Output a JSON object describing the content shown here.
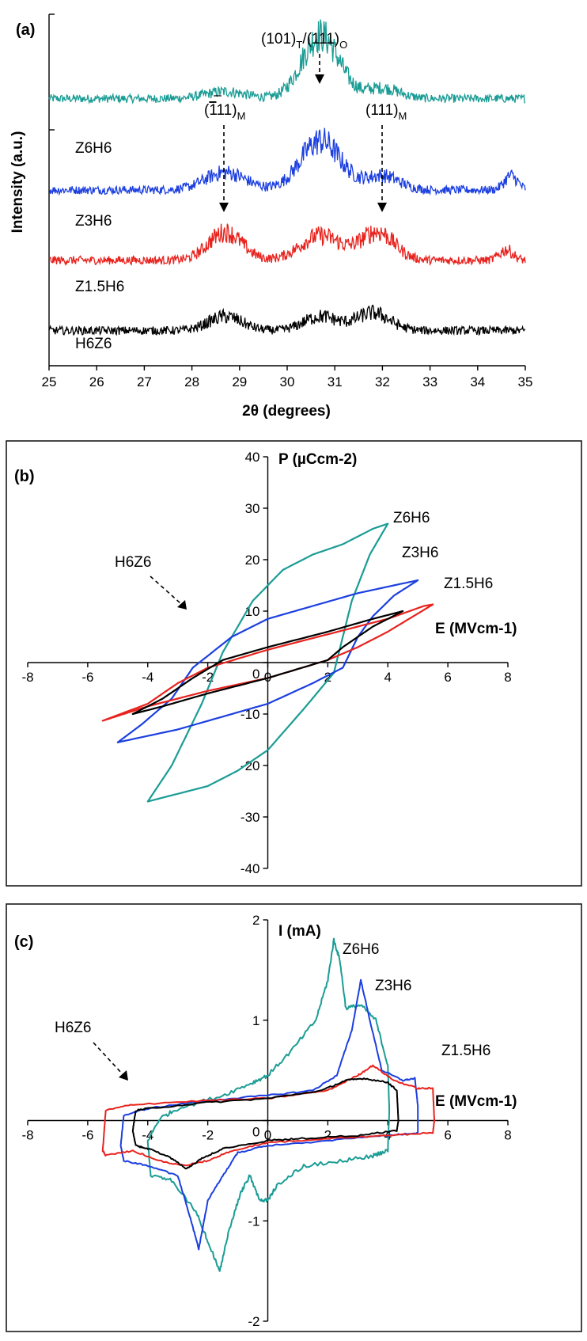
{
  "chart_data": [
    {
      "panel": "(a)",
      "type": "line",
      "xlabel": "2θ (degrees)",
      "ylabel": "Intensity (a.u.)",
      "xlim": [
        25,
        35
      ],
      "xticks": [
        "25",
        "26",
        "27",
        "28",
        "29",
        "30",
        "31",
        "32",
        "33",
        "34",
        "35"
      ],
      "peak_labels": [
        "(1̄11)M",
        "(101)T/(111)O",
        "(111)M"
      ],
      "peak_positions": [
        28.7,
        30.7,
        32.0
      ],
      "series": [
        {
          "name": "Z6H6",
          "color": "#1a9c95",
          "baseline": 0.76,
          "peaks": [
            [
              28.7,
              0.02,
              0.6
            ],
            [
              30.7,
              0.18,
              0.55
            ],
            [
              32.0,
              0.03,
              0.5
            ]
          ]
        },
        {
          "name": "Z3H6",
          "color": "#1c3fe0",
          "baseline": 0.5,
          "peaks": [
            [
              28.7,
              0.05,
              0.6
            ],
            [
              30.7,
              0.14,
              0.6
            ],
            [
              32.0,
              0.04,
              0.5
            ],
            [
              34.7,
              0.04,
              0.2
            ]
          ]
        },
        {
          "name": "Z1.5H6",
          "color": "#e8231e",
          "baseline": 0.3,
          "peaks": [
            [
              28.7,
              0.08,
              0.5
            ],
            [
              30.7,
              0.07,
              0.6
            ],
            [
              31.9,
              0.08,
              0.5
            ],
            [
              34.6,
              0.03,
              0.2
            ]
          ]
        },
        {
          "name": "H6Z6",
          "color": "#000000",
          "baseline": 0.1,
          "peaks": [
            [
              28.7,
              0.04,
              0.5
            ],
            [
              30.7,
              0.04,
              0.5
            ],
            [
              31.8,
              0.05,
              0.5
            ]
          ]
        }
      ]
    },
    {
      "panel": "(b)",
      "type": "line",
      "xlabel": "E (MVcm-1)",
      "ylabel": "P (µCcm-2)",
      "xlim": [
        -8,
        8
      ],
      "ylim": [
        -40,
        40
      ],
      "xticks": [
        "-8",
        "-6",
        "-4",
        "-2",
        "0",
        "2",
        "4",
        "6",
        "8"
      ],
      "yticks": [
        "40",
        "30",
        "20",
        "10",
        "0",
        "-10",
        "-20",
        "-30",
        "-40"
      ],
      "series": [
        {
          "name": "Z6H6",
          "color": "#1a9c95",
          "upper": [
            [
              -4.0,
              -27
            ],
            [
              -3.2,
              -20
            ],
            [
              -2.2,
              -8
            ],
            [
              -1.5,
              2
            ],
            [
              -0.5,
              12
            ],
            [
              0.5,
              18
            ],
            [
              1.5,
              21
            ],
            [
              2.5,
              23
            ],
            [
              3.5,
              26
            ],
            [
              4.0,
              27
            ]
          ],
          "lower": [
            [
              4.0,
              27
            ],
            [
              3.4,
              21
            ],
            [
              2.8,
              12
            ],
            [
              2.2,
              -2
            ],
            [
              1.2,
              -9
            ],
            [
              0,
              -17
            ],
            [
              -1,
              -21
            ],
            [
              -2,
              -24
            ],
            [
              -3,
              -25.5
            ],
            [
              -4.0,
              -27
            ]
          ]
        },
        {
          "name": "Z3H6",
          "color": "#1c3fe0",
          "upper": [
            [
              -5.0,
              -15.5
            ],
            [
              -4.2,
              -12
            ],
            [
              -3.2,
              -7
            ],
            [
              -2.5,
              -1
            ],
            [
              -1.2,
              5
            ],
            [
              0,
              8.5
            ],
            [
              1.5,
              11
            ],
            [
              3,
              13.5
            ],
            [
              4.2,
              15
            ],
            [
              5.0,
              16
            ]
          ],
          "lower": [
            [
              5.0,
              16
            ],
            [
              4.2,
              13
            ],
            [
              3.5,
              9
            ],
            [
              3.0,
              5
            ],
            [
              2.5,
              -1
            ],
            [
              1.5,
              -4
            ],
            [
              0,
              -8
            ],
            [
              -1.5,
              -10.5
            ],
            [
              -3,
              -13
            ],
            [
              -5.0,
              -15.5
            ]
          ]
        },
        {
          "name": "Z1.5H6",
          "color": "#e8231e",
          "upper": [
            [
              -5.5,
              -11.3
            ],
            [
              -4,
              -8
            ],
            [
              -3,
              -4
            ],
            [
              -2,
              -1
            ],
            [
              0,
              2.5
            ],
            [
              2,
              5.5
            ],
            [
              4,
              8.5
            ],
            [
              5.2,
              11
            ],
            [
              5.5,
              11.3
            ]
          ],
          "lower": [
            [
              5.5,
              11.3
            ],
            [
              4,
              6
            ],
            [
              3,
              3
            ],
            [
              2,
              0.5
            ],
            [
              0,
              -3
            ],
            [
              -2,
              -5.5
            ],
            [
              -4,
              -8.5
            ],
            [
              -5.5,
              -11.3
            ]
          ]
        },
        {
          "name": "H6Z6",
          "color": "#000000",
          "upper": [
            [
              -4.5,
              -10
            ],
            [
              -3.5,
              -7
            ],
            [
              -2.5,
              -3
            ],
            [
              -1.5,
              0.5
            ],
            [
              0,
              3
            ],
            [
              2,
              6
            ],
            [
              3.5,
              8.5
            ],
            [
              4.5,
              10
            ]
          ],
          "lower": [
            [
              4.5,
              10
            ],
            [
              3.5,
              7
            ],
            [
              2.5,
              3
            ],
            [
              2,
              0.5
            ],
            [
              0,
              -3
            ],
            [
              -2,
              -6
            ],
            [
              -3.5,
              -8.5
            ],
            [
              -4.5,
              -10
            ]
          ]
        }
      ]
    },
    {
      "panel": "(c)",
      "type": "line",
      "xlabel": "E (MVcm-1)",
      "ylabel": "I (mA)",
      "xlim": [
        -8,
        8
      ],
      "ylim": [
        -2,
        2
      ],
      "xticks": [
        "-8",
        "-6",
        "-4",
        "-2",
        "0",
        "2",
        "4",
        "6",
        "8"
      ],
      "yticks": [
        "2",
        "1",
        "0",
        "-1",
        "-2"
      ],
      "series": [
        {
          "name": "Z6H6",
          "color": "#1a9c95",
          "top": [
            [
              -4.0,
              -0.2
            ],
            [
              -3.6,
              0.02
            ],
            [
              -3,
              0.12
            ],
            [
              -1.5,
              0.25
            ],
            [
              -0.5,
              0.38
            ],
            [
              0,
              0.45
            ],
            [
              0.8,
              0.7
            ],
            [
              1.6,
              1.0
            ],
            [
              2.0,
              1.4
            ],
            [
              2.2,
              1.8
            ],
            [
              2.4,
              1.6
            ],
            [
              2.6,
              1.12
            ],
            [
              3.1,
              1.15
            ],
            [
              3.6,
              1.0
            ],
            [
              4.0,
              0.55
            ],
            [
              4.05,
              0.1
            ]
          ],
          "bottom": [
            [
              4.05,
              0.1
            ],
            [
              4.0,
              -0.3
            ],
            [
              3.5,
              -0.35
            ],
            [
              2.5,
              -0.4
            ],
            [
              1.2,
              -0.45
            ],
            [
              0.3,
              -0.65
            ],
            [
              0,
              -0.8
            ],
            [
              -0.3,
              -0.78
            ],
            [
              -0.6,
              -0.55
            ],
            [
              -0.9,
              -0.72
            ],
            [
              -1.3,
              -1.1
            ],
            [
              -1.6,
              -1.5
            ],
            [
              -2.0,
              -1.2
            ],
            [
              -2.4,
              -0.9
            ],
            [
              -3.2,
              -0.6
            ],
            [
              -3.9,
              -0.55
            ],
            [
              -4.0,
              -0.2
            ]
          ]
        },
        {
          "name": "Z3H6",
          "color": "#1c3fe0",
          "top": [
            [
              -4.9,
              -0.25
            ],
            [
              -4.8,
              0.05
            ],
            [
              -4,
              0.12
            ],
            [
              -2,
              0.2
            ],
            [
              0,
              0.25
            ],
            [
              1.5,
              0.3
            ],
            [
              2.3,
              0.45
            ],
            [
              2.8,
              0.9
            ],
            [
              3.1,
              1.4
            ],
            [
              3.4,
              1.0
            ],
            [
              3.8,
              0.5
            ],
            [
              4.5,
              0.4
            ],
            [
              4.9,
              0.42
            ],
            [
              5.0,
              0.15
            ]
          ],
          "bottom": [
            [
              5.0,
              0.15
            ],
            [
              5.0,
              -0.12
            ],
            [
              4,
              -0.15
            ],
            [
              2,
              -0.2
            ],
            [
              0,
              -0.25
            ],
            [
              -1,
              -0.32
            ],
            [
              -1.5,
              -0.55
            ],
            [
              -2.0,
              -0.8
            ],
            [
              -2.3,
              -1.28
            ],
            [
              -2.6,
              -0.95
            ],
            [
              -3.0,
              -0.55
            ],
            [
              -4,
              -0.45
            ],
            [
              -4.8,
              -0.4
            ],
            [
              -4.9,
              -0.25
            ]
          ]
        },
        {
          "name": "Z1.5H6",
          "color": "#e8231e",
          "top": [
            [
              -5.5,
              -0.3
            ],
            [
              -5.4,
              0.1
            ],
            [
              -4.5,
              0.16
            ],
            [
              -2,
              0.2
            ],
            [
              0,
              0.22
            ],
            [
              2,
              0.3
            ],
            [
              3,
              0.45
            ],
            [
              3.5,
              0.55
            ],
            [
              4.2,
              0.4
            ],
            [
              5.0,
              0.32
            ],
            [
              5.5,
              0.32
            ],
            [
              5.55,
              0.0
            ]
          ],
          "bottom": [
            [
              5.55,
              0.0
            ],
            [
              5.5,
              -0.12
            ],
            [
              4,
              -0.15
            ],
            [
              2,
              -0.18
            ],
            [
              0,
              -0.22
            ],
            [
              -1.2,
              -0.3
            ],
            [
              -2.0,
              -0.4
            ],
            [
              -2.8,
              -0.45
            ],
            [
              -3.6,
              -0.4
            ],
            [
              -4.5,
              -0.3
            ],
            [
              -5.4,
              -0.35
            ],
            [
              -5.5,
              -0.3
            ]
          ]
        },
        {
          "name": "H6Z6",
          "color": "#000000",
          "top": [
            [
              -4.5,
              -0.1
            ],
            [
              -4.4,
              0.1
            ],
            [
              -4,
              0.12
            ],
            [
              -2,
              0.18
            ],
            [
              0,
              0.22
            ],
            [
              1.8,
              0.3
            ],
            [
              2.6,
              0.4
            ],
            [
              3.2,
              0.42
            ],
            [
              4,
              0.38
            ],
            [
              4.3,
              0.3
            ],
            [
              4.35,
              0.0
            ]
          ],
          "bottom": [
            [
              4.35,
              0.0
            ],
            [
              4.3,
              -0.1
            ],
            [
              3,
              -0.15
            ],
            [
              1,
              -0.18
            ],
            [
              0,
              -0.2
            ],
            [
              -1.5,
              -0.28
            ],
            [
              -2.2,
              -0.38
            ],
            [
              -2.7,
              -0.48
            ],
            [
              -3.3,
              -0.36
            ],
            [
              -4,
              -0.28
            ],
            [
              -4.4,
              -0.25
            ],
            [
              -4.5,
              -0.1
            ]
          ]
        }
      ]
    }
  ]
}
